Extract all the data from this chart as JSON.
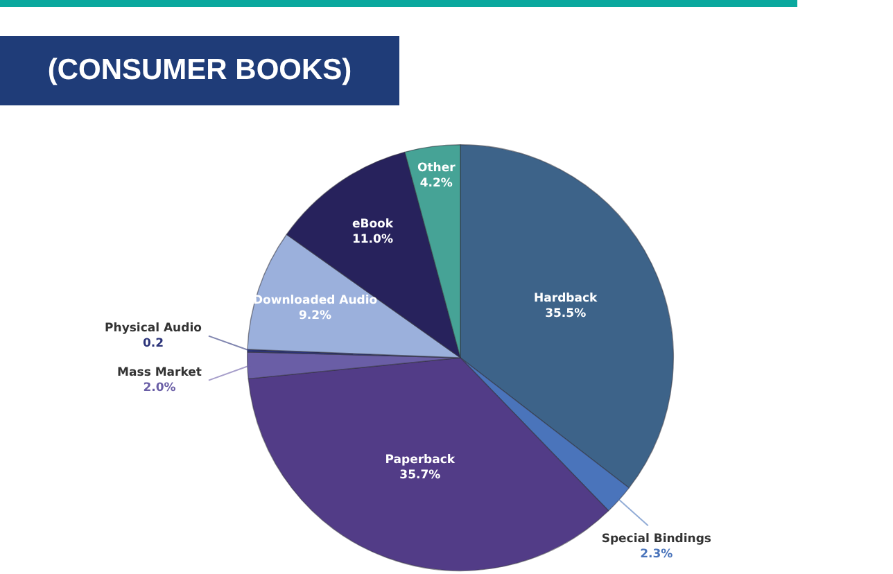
{
  "chart_data": {
    "type": "pie",
    "title": "(CONSUMER BOOKS)",
    "categories": [
      "Hardback",
      "Special Bindings",
      "Paperback",
      "Mass Market",
      "Physical Audio",
      "Downloaded Audio",
      "eBook",
      "Other"
    ],
    "values": [
      35.5,
      2.3,
      35.7,
      2.0,
      0.2,
      9.2,
      11.0,
      4.2
    ],
    "colors": [
      "#3d6389",
      "#4a74bb",
      "#523c87",
      "#6a5ea6",
      "#2c3479",
      "#9bb0dc",
      "#27225c",
      "#46a396"
    ],
    "value_labels": [
      "35.5%",
      "2.3%",
      "35.7%",
      "2.0%",
      "0.2",
      "9.2%",
      "11.0%",
      "4.2%"
    ]
  }
}
